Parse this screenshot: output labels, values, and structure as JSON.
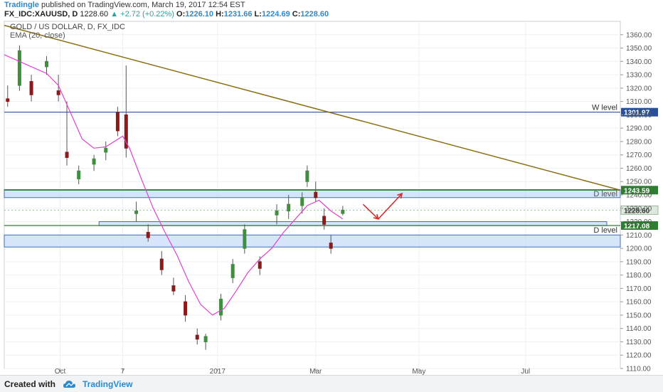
{
  "header": {
    "author": "Tradingle",
    "published_text": "published on TradingView.com, March 19, 2017 12:54 EST",
    "symbol": "FX_IDC:XAUUSD, D",
    "last_price": "1228.60",
    "change_arrow": "▲",
    "change": "+2.72 (+0.22%)",
    "o_label": "O:",
    "o_value": "1226.10",
    "h_label": "H:",
    "h_value": "1231.66",
    "l_label": "L:",
    "l_value": "1224.69",
    "c_label": "C:",
    "c_value": "1228.60"
  },
  "footer": {
    "created_with": "Created with",
    "brand": "TradingView"
  },
  "chart_data": {
    "type": "candlestick",
    "title": "GOLD / US DOLLAR, D, FX_IDC",
    "indicator": "EMA (20, close)",
    "ylim": [
      1110,
      1370
    ],
    "y_ticks": [
      1110,
      1120,
      1130,
      1140,
      1150,
      1160,
      1170,
      1180,
      1190,
      1200,
      1210,
      1220,
      1230,
      1240,
      1250,
      1260,
      1270,
      1280,
      1290,
      1300,
      1310,
      1320,
      1330,
      1340,
      1350,
      1360
    ],
    "y_tick_labels": [
      "1110.00",
      "1120.00",
      "1130.00",
      "1140.00",
      "1150.00",
      "1160.00",
      "1170.00",
      "1180.00",
      "1190.00",
      "1200.00",
      "1210.00",
      "1220.00",
      "1230.00",
      "1240.00",
      "1250.00",
      "1260.00",
      "1270.00",
      "1280.00",
      "1290.00",
      "1300.00",
      "1310.00",
      "1320.00",
      "1330.00",
      "1340.00",
      "1350.00",
      "1360.00"
    ],
    "x_labels": [
      {
        "label": "Oct",
        "date": "2016-10-01"
      },
      {
        "label": "7",
        "date": "2016-11-07"
      },
      {
        "label": "2017",
        "date": "2017-01-02"
      },
      {
        "label": "Mar",
        "date": "2017-03-01"
      },
      {
        "label": "May",
        "date": "2017-05-01"
      },
      {
        "label": "Jul",
        "date": "2017-07-03"
      }
    ],
    "x_range": [
      "2016-08-29",
      "2017-08-28"
    ],
    "candles": [
      {
        "date": "2016-08-31",
        "o": 1312,
        "h": 1322,
        "l": 1306,
        "c": 1310
      },
      {
        "date": "2016-09-07",
        "o": 1322,
        "h": 1352,
        "l": 1318,
        "c": 1348
      },
      {
        "date": "2016-09-14",
        "o": 1325,
        "h": 1330,
        "l": 1310,
        "c": 1315
      },
      {
        "date": "2016-09-23",
        "o": 1336,
        "h": 1344,
        "l": 1330,
        "c": 1340
      },
      {
        "date": "2016-09-30",
        "o": 1318,
        "h": 1330,
        "l": 1310,
        "c": 1315
      },
      {
        "date": "2016-10-05",
        "o": 1272,
        "h": 1310,
        "l": 1262,
        "c": 1268
      },
      {
        "date": "2016-10-12",
        "o": 1252,
        "h": 1262,
        "l": 1248,
        "c": 1258
      },
      {
        "date": "2016-10-21",
        "o": 1263,
        "h": 1270,
        "l": 1258,
        "c": 1267
      },
      {
        "date": "2016-10-28",
        "o": 1272,
        "h": 1280,
        "l": 1266,
        "c": 1275
      },
      {
        "date": "2016-11-04",
        "o": 1302,
        "h": 1306,
        "l": 1284,
        "c": 1288
      },
      {
        "date": "2016-11-09",
        "o": 1300,
        "h": 1337,
        "l": 1268,
        "c": 1275
      },
      {
        "date": "2016-11-15",
        "o": 1226,
        "h": 1235,
        "l": 1220,
        "c": 1228
      },
      {
        "date": "2016-11-22",
        "o": 1212,
        "h": 1218,
        "l": 1205,
        "c": 1208
      },
      {
        "date": "2016-11-30",
        "o": 1192,
        "h": 1198,
        "l": 1180,
        "c": 1184
      },
      {
        "date": "2016-12-07",
        "o": 1172,
        "h": 1178,
        "l": 1165,
        "c": 1168
      },
      {
        "date": "2016-12-14",
        "o": 1160,
        "h": 1165,
        "l": 1145,
        "c": 1150
      },
      {
        "date": "2016-12-21",
        "o": 1135,
        "h": 1140,
        "l": 1128,
        "c": 1132
      },
      {
        "date": "2016-12-26",
        "o": 1130,
        "h": 1136,
        "l": 1124,
        "c": 1134
      },
      {
        "date": "2017-01-04",
        "o": 1150,
        "h": 1166,
        "l": 1146,
        "c": 1162
      },
      {
        "date": "2017-01-11",
        "o": 1178,
        "h": 1192,
        "l": 1174,
        "c": 1188
      },
      {
        "date": "2017-01-18",
        "o": 1200,
        "h": 1218,
        "l": 1196,
        "c": 1214
      },
      {
        "date": "2017-01-27",
        "o": 1190,
        "h": 1194,
        "l": 1180,
        "c": 1185
      },
      {
        "date": "2017-02-06",
        "o": 1225,
        "h": 1233,
        "l": 1218,
        "c": 1228
      },
      {
        "date": "2017-02-13",
        "o": 1228,
        "h": 1240,
        "l": 1222,
        "c": 1233
      },
      {
        "date": "2017-02-21",
        "o": 1232,
        "h": 1242,
        "l": 1226,
        "c": 1238
      },
      {
        "date": "2017-02-24",
        "o": 1250,
        "h": 1262,
        "l": 1246,
        "c": 1258
      },
      {
        "date": "2017-03-01",
        "o": 1242,
        "h": 1250,
        "l": 1235,
        "c": 1238
      },
      {
        "date": "2017-03-06",
        "o": 1224,
        "h": 1230,
        "l": 1214,
        "c": 1218
      },
      {
        "date": "2017-03-10",
        "o": 1204,
        "h": 1210,
        "l": 1196,
        "c": 1200
      },
      {
        "date": "2017-03-17",
        "o": 1226.1,
        "h": 1231.66,
        "l": 1224.69,
        "c": 1228.6
      }
    ],
    "ema_20": [
      {
        "date": "2016-08-29",
        "v": 1345
      },
      {
        "date": "2016-09-07",
        "v": 1340
      },
      {
        "date": "2016-09-14",
        "v": 1336
      },
      {
        "date": "2016-09-23",
        "v": 1331
      },
      {
        "date": "2016-09-30",
        "v": 1322
      },
      {
        "date": "2016-10-07",
        "v": 1302
      },
      {
        "date": "2016-10-14",
        "v": 1282
      },
      {
        "date": "2016-10-21",
        "v": 1275
      },
      {
        "date": "2016-10-28",
        "v": 1276
      },
      {
        "date": "2016-11-07",
        "v": 1284
      },
      {
        "date": "2016-11-11",
        "v": 1275
      },
      {
        "date": "2016-11-18",
        "v": 1252
      },
      {
        "date": "2016-11-25",
        "v": 1230
      },
      {
        "date": "2016-12-02",
        "v": 1212
      },
      {
        "date": "2016-12-09",
        "v": 1195
      },
      {
        "date": "2016-12-16",
        "v": 1175
      },
      {
        "date": "2016-12-23",
        "v": 1158
      },
      {
        "date": "2016-12-30",
        "v": 1150
      },
      {
        "date": "2017-01-06",
        "v": 1155
      },
      {
        "date": "2017-01-13",
        "v": 1168
      },
      {
        "date": "2017-01-20",
        "v": 1182
      },
      {
        "date": "2017-01-27",
        "v": 1192
      },
      {
        "date": "2017-02-03",
        "v": 1200
      },
      {
        "date": "2017-02-10",
        "v": 1212
      },
      {
        "date": "2017-02-17",
        "v": 1222
      },
      {
        "date": "2017-02-24",
        "v": 1232
      },
      {
        "date": "2017-03-03",
        "v": 1236
      },
      {
        "date": "2017-03-10",
        "v": 1228
      },
      {
        "date": "2017-03-17",
        "v": 1222
      }
    ],
    "trendline": {
      "from": {
        "date": "2016-08-29",
        "v": 1367
      },
      "to": {
        "date": "2017-08-28",
        "v": 1243.59
      }
    },
    "horizontal_lines": [
      {
        "value": 1301.97,
        "label": "W level",
        "price_label": "1301.97",
        "color": "#2a4f9a"
      },
      {
        "value": 1243.59,
        "label": "",
        "price_label": "1243.59",
        "color": "#2e7d32"
      },
      {
        "value": 1217.08,
        "label": "D level",
        "price_label": "1217.08",
        "color": "#2e7d32"
      }
    ],
    "zones": [
      {
        "from": 1238,
        "to": 1244,
        "label": "D level",
        "start": "2016-08-29",
        "end": "2017-08-28"
      },
      {
        "from": 1217,
        "to": 1220,
        "label": "",
        "start": "2016-10-24",
        "end": "2017-08-20"
      },
      {
        "from": 1201,
        "to": 1210,
        "label": "",
        "start": "2016-08-29",
        "end": "2017-08-28"
      }
    ],
    "last_price_label": "1228.60",
    "arrows": [
      {
        "from": {
          "date": "2017-03-29",
          "v": 1233
        },
        "to": {
          "date": "2017-04-07",
          "v": 1222
        }
      },
      {
        "from": {
          "date": "2017-04-07",
          "v": 1222
        },
        "to": {
          "date": "2017-04-21",
          "v": 1241
        }
      }
    ]
  }
}
